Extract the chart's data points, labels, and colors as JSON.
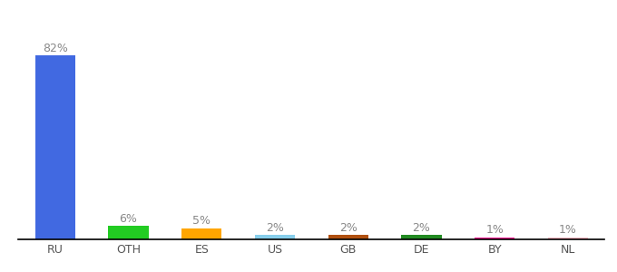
{
  "categories": [
    "RU",
    "OTH",
    "ES",
    "US",
    "GB",
    "DE",
    "BY",
    "NL"
  ],
  "values": [
    82,
    6,
    5,
    2,
    2,
    2,
    1,
    1
  ],
  "labels": [
    "82%",
    "6%",
    "5%",
    "2%",
    "2%",
    "2%",
    "1%",
    "1%"
  ],
  "bar_colors": [
    "#4169E1",
    "#22CC22",
    "#FFA500",
    "#87CEEB",
    "#B05010",
    "#228B22",
    "#FF1493",
    "#FFB6C1"
  ],
  "background_color": "#ffffff",
  "label_color": "#888888",
  "label_fontsize": 9,
  "tick_fontsize": 9,
  "ylim": [
    0,
    92
  ]
}
